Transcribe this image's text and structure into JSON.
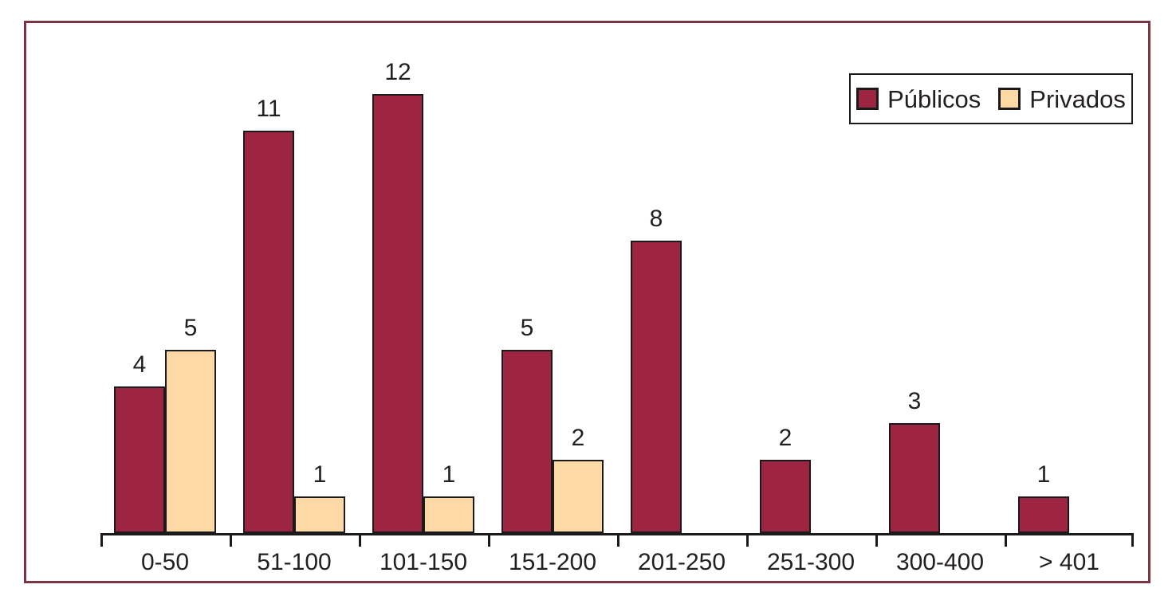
{
  "chart_data": {
    "type": "bar",
    "categories": [
      "0-50",
      "51-100",
      "101-150",
      "151-200",
      "201-250",
      "251-300",
      "300-400",
      "> 401"
    ],
    "series": [
      {
        "name": "Públicos",
        "color": "#9D2542",
        "values": [
          4,
          11,
          12,
          5,
          8,
          2,
          3,
          1
        ]
      },
      {
        "name": "Privados",
        "color": "#FDD9A6",
        "values": [
          5,
          1,
          1,
          2,
          null,
          null,
          null,
          null
        ]
      }
    ],
    "title": "",
    "xlabel": "",
    "ylabel": "",
    "ylim": [
      0,
      12
    ],
    "grid": false,
    "value_labels": true,
    "legend_position": "top-right"
  },
  "style": {
    "frame_border_color": "#7D3342",
    "bar_outline_color": "#1a1a1a",
    "text_color": "#231f20"
  }
}
